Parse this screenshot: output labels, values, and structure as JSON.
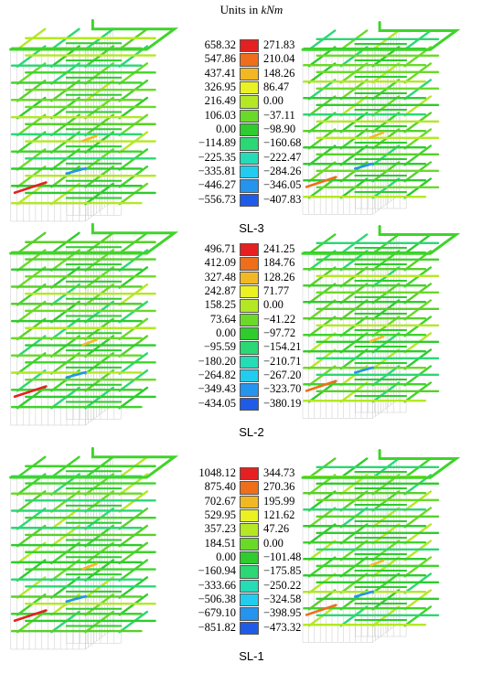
{
  "units_prefix": "Units in ",
  "units_unit": "kNm",
  "colors": [
    "#e52020",
    "#ee6e1c",
    "#f2b824",
    "#eaf222",
    "#b4e824",
    "#6ada28",
    "#2ecc2c",
    "#2ad874",
    "#24dcb6",
    "#22ccee",
    "#2494ee",
    "#1e5ce8"
  ],
  "panels": [
    {
      "label": "SL-3",
      "left_values": [
        "658.32",
        "547.86",
        "437.41",
        "326.95",
        "216.49",
        "106.03",
        "0.00",
        "−114.89",
        "−225.35",
        "−335.81",
        "−446.27",
        "−556.73"
      ],
      "right_values": [
        "271.83",
        "210.04",
        "148.26",
        "86.47",
        "0.00",
        "−37.11",
        "−98.90",
        "−160.68",
        "−222.47",
        "−284.26",
        "−346.05",
        "−407.83"
      ]
    },
    {
      "label": "SL-2",
      "left_values": [
        "496.71",
        "412.09",
        "327.48",
        "242.87",
        "158.25",
        "73.64",
        "0.00",
        "−95.59",
        "−180.20",
        "−264.82",
        "−349.43",
        "−434.05"
      ],
      "right_values": [
        "241.25",
        "184.76",
        "128.26",
        "71.77",
        "0.00",
        "−41.22",
        "−97.72",
        "−154.21",
        "−210.71",
        "−267.20",
        "−323.70",
        "−380.19"
      ]
    },
    {
      "label": "SL-1",
      "left_values": [
        "1048.12",
        "875.40",
        "702.67",
        "529.95",
        "357.23",
        "184.51",
        "0.00",
        "−160.94",
        "−333.66",
        "−506.38",
        "−679.10",
        "−851.82"
      ],
      "right_values": [
        "344.73",
        "270.36",
        "195.99",
        "121.62",
        "47.26",
        "0.00",
        "−101.48",
        "−175.85",
        "−250.22",
        "−324.58",
        "−398.95",
        "−473.32"
      ]
    }
  ]
}
